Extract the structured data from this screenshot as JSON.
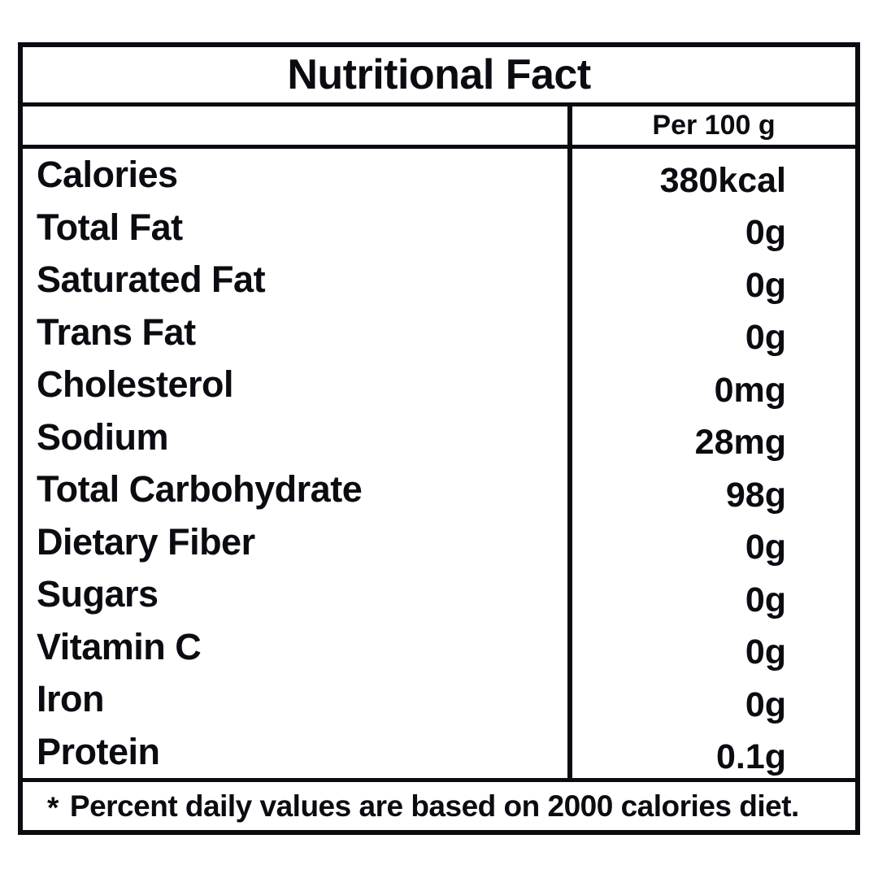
{
  "title": "Nutritional Fact",
  "table": {
    "value_column_header": "Per 100 g",
    "rows": [
      {
        "name": "Calories",
        "value": "380kcal"
      },
      {
        "name": "Total Fat",
        "value": "0g"
      },
      {
        "name": "Saturated Fat",
        "value": "0g"
      },
      {
        "name": "Trans Fat",
        "value": "0g"
      },
      {
        "name": "Cholesterol",
        "value": "0mg"
      },
      {
        "name": "Sodium",
        "value": "28mg"
      },
      {
        "name": "Total Carbohydrate",
        "value": "98g"
      },
      {
        "name": "Dietary Fiber",
        "value": "0g"
      },
      {
        "name": "Sugars",
        "value": "0g"
      },
      {
        "name": "Vitamin C",
        "value": "0g"
      },
      {
        "name": "Iron",
        "value": "0g"
      },
      {
        "name": "Protein",
        "value": "0.1g"
      }
    ]
  },
  "footnote": {
    "marker": "*",
    "text": "Percent daily values are based on 2000 calories diet."
  },
  "colors": {
    "ink": "#0b0b12",
    "background": "#ffffff"
  }
}
